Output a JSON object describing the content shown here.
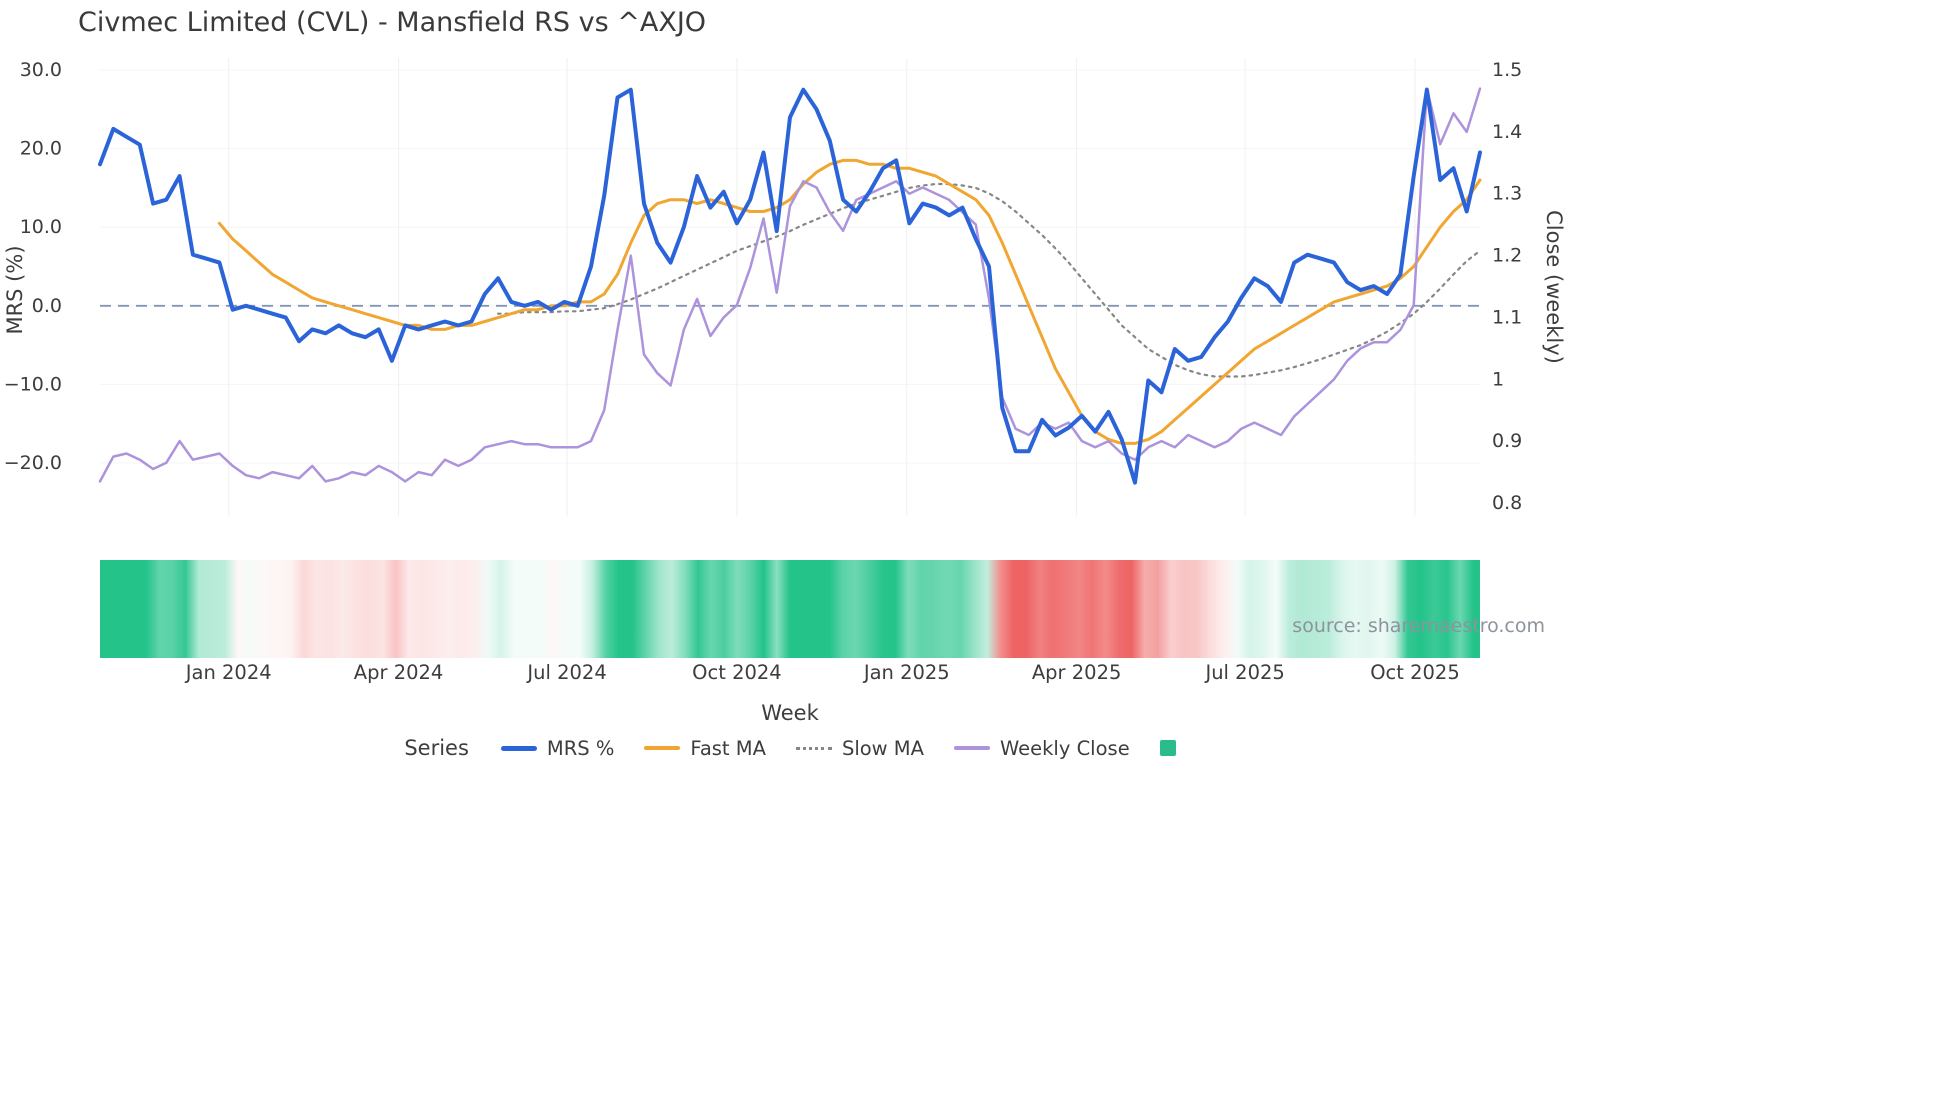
{
  "page": {
    "title": "Civmec Limited (CVL) - Mansfield RS vs ^AXJO",
    "source": "source: sharemaestro.com"
  },
  "chart_data": {
    "type": "line",
    "title": "Civmec Limited (CVL) - Mansfield RS vs ^AXJO",
    "xlabel": "Week",
    "ylabel_left": "MRS (%)",
    "ylabel_right": "Close (weekly)",
    "legend_title": "Series",
    "ylim_left": [
      -26,
      31
    ],
    "ylim_right": [
      0.78,
      1.52
    ],
    "x_ticks": [
      {
        "label": "Jan 2024",
        "week": 9.7
      },
      {
        "label": "Apr 2024",
        "week": 22.5
      },
      {
        "label": "Jul 2024",
        "week": 35.2
      },
      {
        "label": "Oct 2024",
        "week": 48.0
      },
      {
        "label": "Jan 2025",
        "week": 60.8
      },
      {
        "label": "Apr 2025",
        "week": 73.6
      },
      {
        "label": "Jul 2025",
        "week": 86.3
      },
      {
        "label": "Oct 2025",
        "week": 99.1
      }
    ],
    "y_ticks_left": [
      {
        "label": "30.0",
        "value": 30
      },
      {
        "label": "20.0",
        "value": 20
      },
      {
        "label": "10.0",
        "value": 10
      },
      {
        "label": "0.0",
        "value": 0
      },
      {
        "label": "−10.0",
        "value": -10
      },
      {
        "label": "−20.0",
        "value": -20
      }
    ],
    "y_ticks_right": [
      {
        "label": "1.5",
        "value": 1.5
      },
      {
        "label": "1.4",
        "value": 1.4
      },
      {
        "label": "1.3",
        "value": 1.3
      },
      {
        "label": "1.2",
        "value": 1.2
      },
      {
        "label": "1.1",
        "value": 1.1
      },
      {
        "label": "1",
        "value": 1.0
      },
      {
        "label": "0.9",
        "value": 0.9
      },
      {
        "label": "0.8",
        "value": 0.8
      }
    ],
    "zero_line": {
      "axis": "left",
      "value": 0,
      "style": "dashed",
      "color": "#8296b4"
    },
    "colors": {
      "grid": "#f0f0f0",
      "grid_h": "#f6f6f6",
      "text": "#3d3d3d",
      "title": "#3a3a3a",
      "source_text": "#8d939c"
    },
    "series": [
      {
        "name": "MRS %",
        "axis": "left",
        "style": "solid",
        "width": 4,
        "color": "#2b63d9",
        "values": [
          18,
          22.5,
          21.5,
          20.5,
          13,
          13.5,
          16.5,
          6.5,
          6,
          5.5,
          -0.5,
          0,
          -0.5,
          -1,
          -1.5,
          -4.5,
          -3,
          -3.5,
          -2.5,
          -3.5,
          -4,
          -3,
          -7,
          -2.5,
          -3,
          -2.5,
          -2,
          -2.5,
          -2,
          1.5,
          3.5,
          0.5,
          0,
          0.5,
          -0.5,
          0.5,
          0,
          5,
          14,
          26.5,
          27.5,
          13,
          8,
          5.5,
          10,
          16.5,
          12.5,
          14.5,
          10.5,
          13.5,
          19.5,
          9.5,
          24,
          27.5,
          25,
          21,
          13.5,
          12,
          14.5,
          17.5,
          18.5,
          10.5,
          13,
          12.5,
          11.5,
          12.5,
          8.5,
          5,
          -13,
          -18.5,
          -18.5,
          -14.5,
          -16.5,
          -15.5,
          -14,
          -16,
          -13.5,
          -17,
          -22.5,
          -9.5,
          -11,
          -5.5,
          -7,
          -6.5,
          -4,
          -2,
          1,
          3.5,
          2.5,
          0.5,
          5.5,
          6.5,
          6,
          5.5,
          3,
          2,
          2.5,
          1.5,
          4,
          16.5,
          27.5,
          16,
          17.5,
          12,
          19.5
        ]
      },
      {
        "name": "Fast MA",
        "axis": "left",
        "style": "solid",
        "width": 3,
        "color": "#f0a630",
        "values": [
          null,
          null,
          null,
          null,
          null,
          null,
          null,
          null,
          null,
          10.5,
          8.5,
          7,
          5.5,
          4,
          3,
          2,
          1,
          0.5,
          0,
          -0.5,
          -1,
          -1.5,
          -2,
          -2.5,
          -2.5,
          -3,
          -3,
          -2.5,
          -2.5,
          -2,
          -1.5,
          -1,
          -0.5,
          -0.5,
          0,
          0,
          0.5,
          0.5,
          1.5,
          4,
          8,
          11.5,
          13,
          13.5,
          13.5,
          13,
          13.5,
          13,
          12.5,
          12,
          12,
          12.5,
          13.5,
          15.5,
          17,
          18,
          18.5,
          18.5,
          18,
          18,
          17.5,
          17.5,
          17,
          16.5,
          15.5,
          14.5,
          13.5,
          11.5,
          8,
          4,
          0,
          -4,
          -8,
          -11,
          -14,
          -16,
          -17,
          -17.5,
          -17.5,
          -17,
          -16,
          -14.5,
          -13,
          -11.5,
          -10,
          -8.5,
          -7,
          -5.5,
          -4.5,
          -3.5,
          -2.5,
          -1.5,
          -0.5,
          0.5,
          1,
          1.5,
          2,
          2.5,
          3.5,
          5,
          7.5,
          10,
          12,
          13.5,
          16
        ]
      },
      {
        "name": "Slow MA",
        "axis": "left",
        "style": "dotted",
        "width": 2.2,
        "color": "#878787",
        "values": [
          null,
          null,
          null,
          null,
          null,
          null,
          null,
          null,
          null,
          null,
          null,
          null,
          null,
          null,
          null,
          null,
          null,
          null,
          null,
          null,
          null,
          null,
          null,
          null,
          null,
          null,
          null,
          null,
          null,
          null,
          -1,
          -1,
          -0.8,
          -0.8,
          -0.8,
          -0.7,
          -0.7,
          -0.5,
          -0.3,
          0.2,
          0.8,
          1.5,
          2.2,
          3,
          3.8,
          4.6,
          5.4,
          6.2,
          7,
          7.6,
          8.2,
          8.8,
          9.5,
          10.3,
          11,
          11.7,
          12.4,
          13,
          13.5,
          14,
          14.5,
          15,
          15.3,
          15.5,
          15.5,
          15.3,
          15,
          14.3,
          13.3,
          12,
          10.5,
          9,
          7.3,
          5.5,
          3.5,
          1.5,
          -0.5,
          -2.5,
          -4,
          -5.5,
          -6.5,
          -7.5,
          -8.2,
          -8.7,
          -9,
          -9,
          -9,
          -8.8,
          -8.5,
          -8.2,
          -7.8,
          -7.3,
          -6.8,
          -6.2,
          -5.6,
          -5,
          -4.2,
          -3.3,
          -2.2,
          -1,
          0.5,
          2.2,
          4,
          5.7,
          7
        ]
      },
      {
        "name": "Weekly Close",
        "axis": "right",
        "style": "solid",
        "width": 2.5,
        "color": "#ad93dc",
        "values": [
          0.835,
          0.875,
          0.88,
          0.87,
          0.855,
          0.865,
          0.9,
          0.87,
          0.875,
          0.88,
          0.86,
          0.845,
          0.84,
          0.85,
          0.845,
          0.84,
          0.86,
          0.835,
          0.84,
          0.85,
          0.845,
          0.86,
          0.85,
          0.835,
          0.85,
          0.845,
          0.87,
          0.86,
          0.87,
          0.89,
          0.895,
          0.9,
          0.895,
          0.895,
          0.89,
          0.89,
          0.89,
          0.9,
          0.95,
          1.08,
          1.2,
          1.04,
          1.01,
          0.99,
          1.08,
          1.13,
          1.07,
          1.1,
          1.12,
          1.18,
          1.26,
          1.14,
          1.28,
          1.32,
          1.31,
          1.27,
          1.24,
          1.29,
          1.3,
          1.31,
          1.32,
          1.3,
          1.31,
          1.3,
          1.29,
          1.27,
          1.25,
          1.13,
          0.97,
          0.92,
          0.91,
          0.93,
          0.92,
          0.93,
          0.9,
          0.89,
          0.9,
          0.88,
          0.87,
          0.89,
          0.9,
          0.89,
          0.91,
          0.9,
          0.89,
          0.9,
          0.92,
          0.93,
          0.92,
          0.91,
          0.94,
          0.96,
          0.98,
          1.0,
          1.03,
          1.05,
          1.06,
          1.06,
          1.08,
          1.12,
          1.47,
          1.38,
          1.43,
          1.4,
          1.47
        ]
      }
    ],
    "heatmap": {
      "based_on": "MRS %",
      "positive_color": "#23c38a",
      "negative_color": "#ee6464",
      "legend_color": "#2abd8a",
      "weeks": 105
    }
  }
}
